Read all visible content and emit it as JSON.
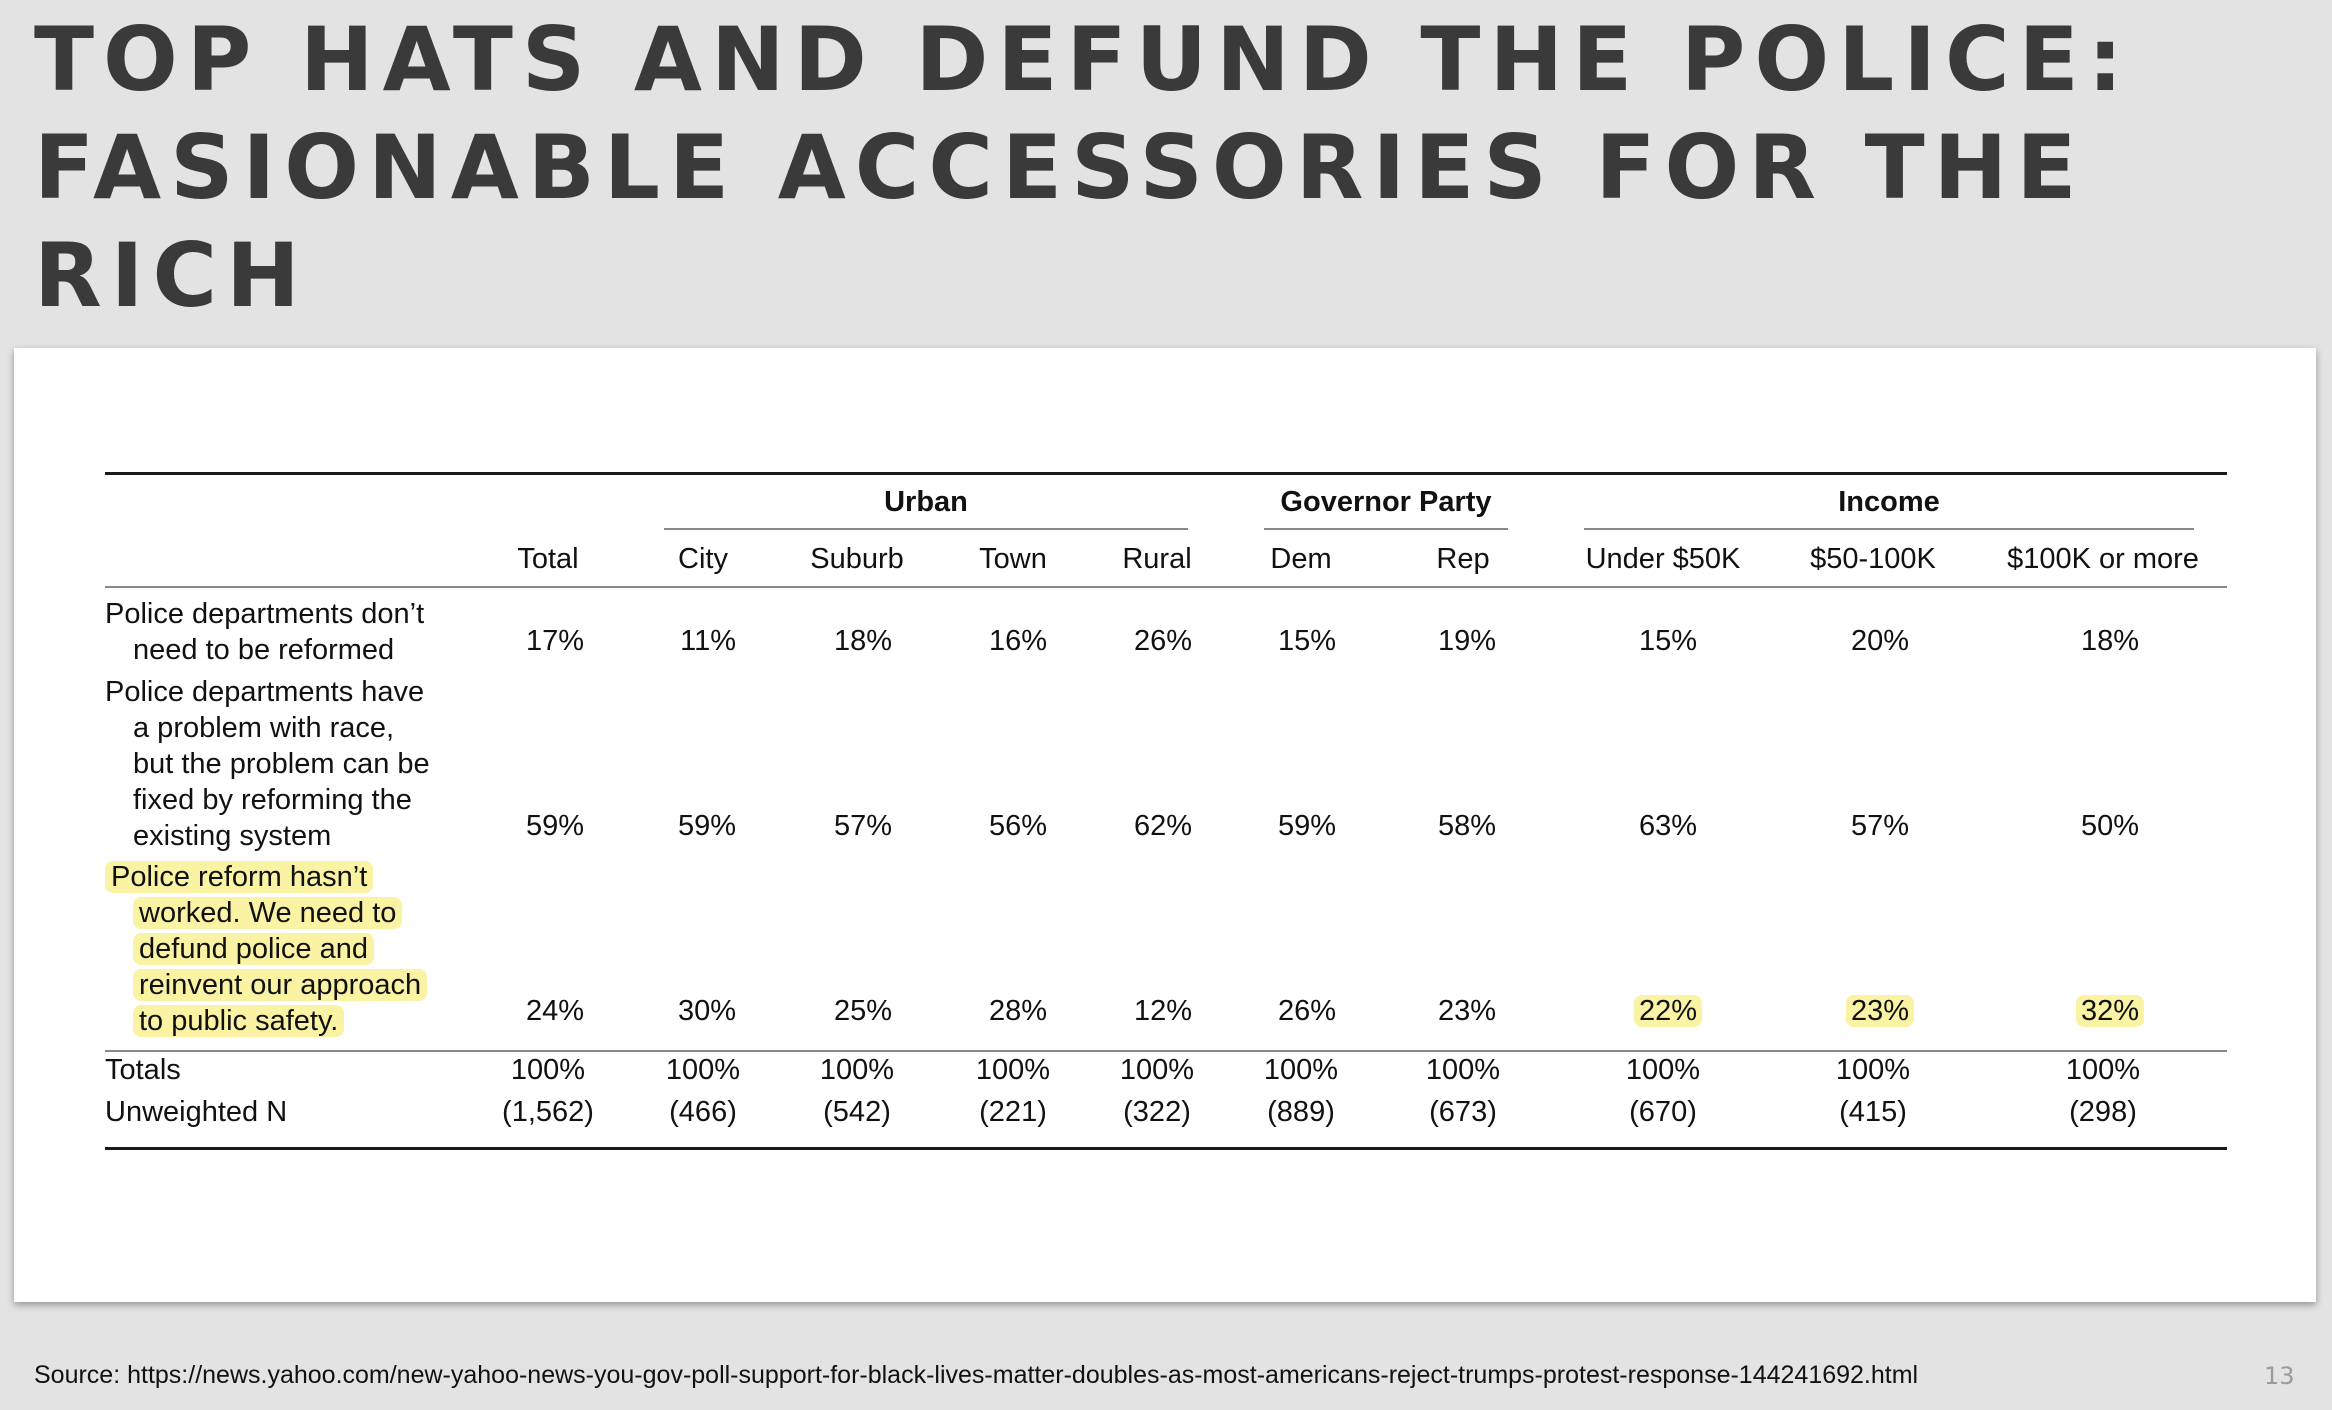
{
  "slide": {
    "title_lines": [
      "TOP HATS AND DEFUND THE POLICE:",
      "FASIONABLE ACCESSORIES FOR THE",
      "RICH"
    ],
    "source": "Source: https://news.yahoo.com/new-yahoo-news-you-gov-poll-support-for-black-lives-matter-doubles-as-most-americans-reject-trumps-protest-response-144241692.html",
    "page_number": "13",
    "highlight_color": "#fbf3a4"
  },
  "chart_data": {
    "type": "table",
    "column_groups": [
      {
        "label": "Urban",
        "columns": [
          "City",
          "Suburb",
          "Town",
          "Rural"
        ]
      },
      {
        "label": "Governor Party",
        "columns": [
          "Dem",
          "Rep"
        ]
      },
      {
        "label": "Income",
        "columns": [
          "Under $50K",
          "$50-100K",
          "$100K or more"
        ]
      }
    ],
    "columns": [
      "Total",
      "City",
      "Suburb",
      "Town",
      "Rural",
      "Dem",
      "Rep",
      "Under $50K",
      "$50-100K",
      "$100K or more"
    ],
    "rows": [
      {
        "label_lines": [
          "Police departments don’t",
          "need to be reformed"
        ],
        "values": [
          "17%",
          "11%",
          "18%",
          "16%",
          "26%",
          "15%",
          "19%",
          "15%",
          "20%",
          "18%"
        ],
        "highlight_label": false,
        "highlight_columns": []
      },
      {
        "label_lines": [
          "Police departments have",
          "a problem with race,",
          "but the problem can be",
          "fixed by reforming the",
          "existing system"
        ],
        "values": [
          "59%",
          "59%",
          "57%",
          "56%",
          "62%",
          "59%",
          "58%",
          "63%",
          "57%",
          "50%"
        ],
        "highlight_label": false,
        "highlight_columns": []
      },
      {
        "label_lines": [
          "Police reform hasn’t",
          "worked. We need to",
          "defund police and",
          "reinvent our approach",
          "to public safety."
        ],
        "values": [
          "24%",
          "30%",
          "25%",
          "28%",
          "12%",
          "26%",
          "23%",
          "22%",
          "23%",
          "32%"
        ],
        "highlight_label": true,
        "highlight_columns": [
          7,
          8,
          9
        ]
      }
    ],
    "footer_rows": [
      {
        "label": "Totals",
        "values": [
          "100%",
          "100%",
          "100%",
          "100%",
          "100%",
          "100%",
          "100%",
          "100%",
          "100%",
          "100%"
        ]
      },
      {
        "label": "Unweighted N",
        "values": [
          "(1,562)",
          "(466)",
          "(542)",
          "(221)",
          "(322)",
          "(889)",
          "(673)",
          "(670)",
          "(415)",
          "(298)"
        ]
      }
    ]
  }
}
